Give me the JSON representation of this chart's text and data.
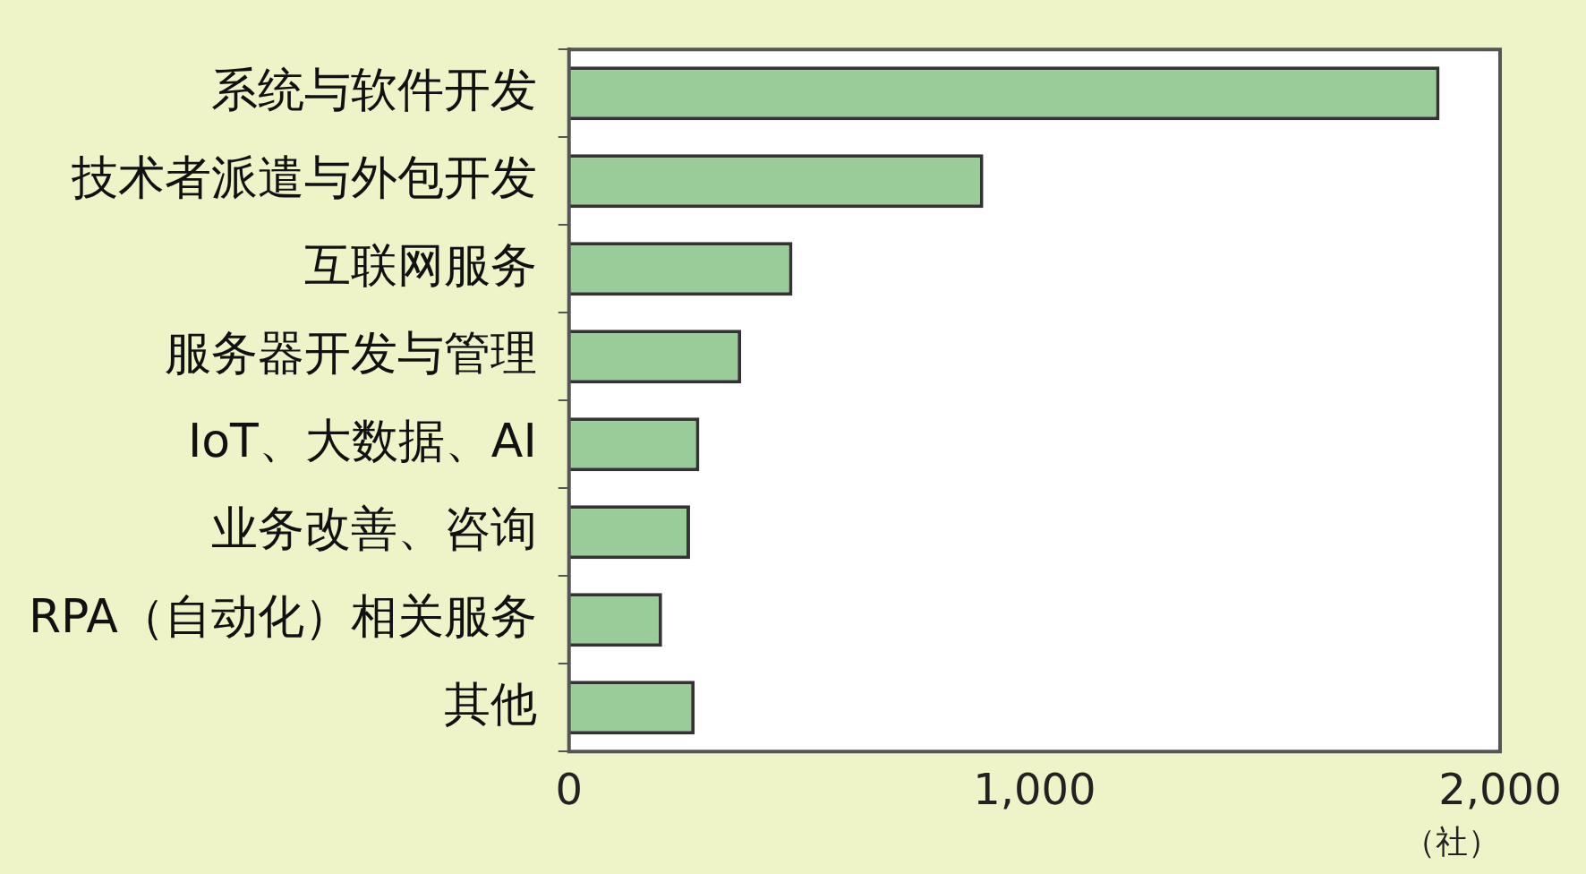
{
  "chart_data": {
    "type": "bar",
    "orientation": "horizontal",
    "xlabel": "（社）",
    "categories": [
      "系统与软件开发",
      "技术者派遣与外包开发",
      "互联网服务",
      "服务器开发与管理",
      "IoT、大数据、AI",
      "业务改善、咨询",
      "RPA（自动化）相关服务",
      "其他"
    ],
    "values": [
      1870,
      890,
      480,
      370,
      280,
      260,
      200,
      270
    ],
    "color": "#99cc99",
    "xlim": [
      0,
      2000
    ],
    "xticks": [
      {
        "value": 0,
        "label": "0"
      },
      {
        "value": 1000,
        "label": "1,000"
      },
      {
        "value": 2000,
        "label": "2,000"
      }
    ],
    "grid": false,
    "legend": false
  }
}
